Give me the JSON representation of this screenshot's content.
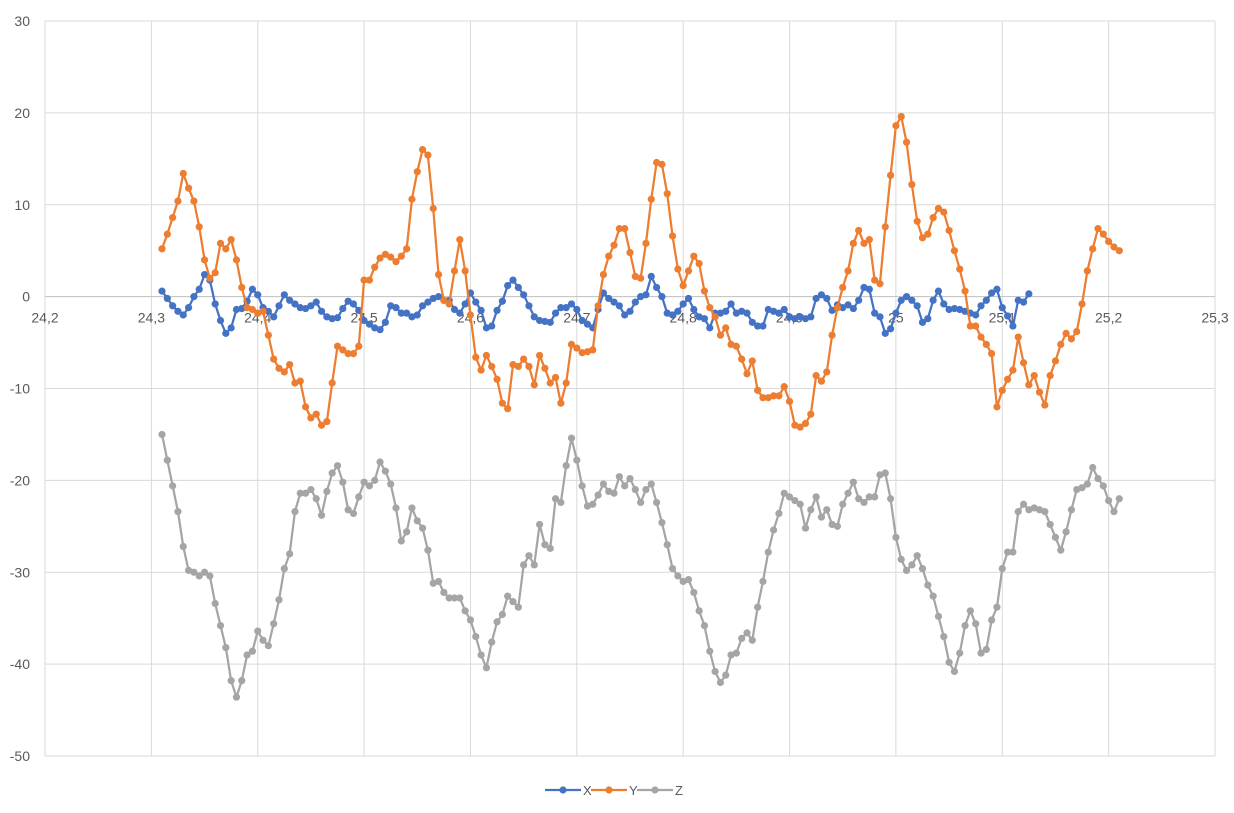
{
  "chart_data": {
    "type": "line",
    "title": "",
    "xlabel": "",
    "ylabel": "",
    "xlim": [
      24.2,
      25.3
    ],
    "ylim": [
      -50,
      30
    ],
    "x_ticks": [
      24.2,
      24.3,
      24.4,
      24.5,
      24.6,
      24.7,
      24.8,
      24.9,
      25.0,
      25.1,
      25.2,
      25.3
    ],
    "x_tick_labels": [
      "24,2",
      "24,3",
      "24,4",
      "24,5",
      "24,6",
      "24,7",
      "24,8",
      "24,9",
      "25",
      "25,1",
      "25,2",
      "25,3"
    ],
    "y_ticks": [
      30,
      20,
      10,
      0,
      -10,
      -20,
      -30,
      -40,
      -50
    ],
    "y_tick_labels": [
      "30",
      "20",
      "10",
      "0",
      "-10",
      "-20",
      "-30",
      "-40",
      "-50"
    ],
    "grid": true,
    "markers": true,
    "legend_position": "bottom",
    "x_start": 24.31,
    "x_step": 0.005,
    "series": [
      {
        "name": "X",
        "color": "#4472C4",
        "values": [
          0.6,
          -0.2,
          -1,
          -1.6,
          -2,
          -1.2,
          0,
          0.8,
          2.4,
          1.8,
          -0.8,
          -2.6,
          -4,
          -3.4,
          -1.4,
          -1.3,
          -0.5,
          0.8,
          0.2,
          -1.2,
          -1.6,
          -2.2,
          -1,
          0.2,
          -0.4,
          -0.8,
          -1.2,
          -1.3,
          -1,
          -0.6,
          -1.6,
          -2.2,
          -2.4,
          -2.3,
          -1.3,
          -0.5,
          -0.8,
          -1.5,
          -2.6,
          -3,
          -3.4,
          -3.6,
          -2.8,
          -1,
          -1.2,
          -1.8,
          -1.8,
          -2.2,
          -2,
          -1,
          -0.6,
          -0.2,
          0,
          -0.4,
          -0.4,
          -1.4,
          -1.8,
          -0.8,
          0.4,
          -0.6,
          -1.5,
          -3.4,
          -3.2,
          -1.5,
          -0.5,
          1.2,
          1.8,
          1,
          0.2,
          -1,
          -2.2,
          -2.6,
          -2.7,
          -2.8,
          -1.8,
          -1.2,
          -1.2,
          -0.8,
          -1.4,
          -2.6,
          -3,
          -3.4,
          -1.4,
          0.4,
          -0.2,
          -0.6,
          -1,
          -2,
          -1.6,
          -0.6,
          0,
          0.2,
          2.2,
          1,
          0,
          -1.8,
          -2,
          -1.6,
          -0.8,
          -0.2,
          -1.4,
          -2.2,
          -2.4,
          -3.4,
          -1.8,
          -1.8,
          -1.6,
          -0.8,
          -1.8,
          -1.6,
          -1.8,
          -2.8,
          -3.2,
          -3.2,
          -1.4,
          -1.6,
          -1.8,
          -1.4,
          -2.2,
          -2.4,
          -2.2,
          -2.4,
          -2.2,
          -0.2,
          0.2,
          -0.2,
          -1.5,
          -0.9,
          -1.2,
          -0.9,
          -1.3,
          -0.4,
          1,
          0.8,
          -1.8,
          -2.2,
          -4,
          -3.5,
          -1.8,
          -0.4,
          0,
          -0.4,
          -1,
          -2.8,
          -2.4,
          -0.4,
          0.6,
          -0.8,
          -1.4,
          -1.3,
          -1.4,
          -1.6,
          -1.8,
          -2,
          -1,
          -0.4,
          0.4,
          0.8,
          -1.2,
          -2.1,
          -3.2,
          -0.4,
          -0.6,
          0.3
        ]
      },
      {
        "name": "Y",
        "color": "#ED7D31",
        "values": [
          5.2,
          6.8,
          8.6,
          10.4,
          13.4,
          11.8,
          10.4,
          7.6,
          4,
          2,
          2.6,
          5.8,
          5.2,
          6.2,
          4,
          1,
          -1.2,
          -1.4,
          -1.8,
          -1.6,
          -4.2,
          -6.8,
          -7.8,
          -8.2,
          -7.4,
          -9.4,
          -9.2,
          -12,
          -13.2,
          -12.8,
          -14,
          -13.6,
          -9.4,
          -5.4,
          -5.8,
          -6.2,
          -6.2,
          -5.4,
          1.8,
          1.8,
          3.2,
          4.2,
          4.6,
          4.3,
          3.8,
          4.4,
          5.2,
          10.6,
          13.6,
          16,
          15.4,
          9.6,
          2.4,
          -0.4,
          -0.8,
          2.8,
          6.2,
          2.8,
          -2,
          -6.6,
          -8,
          -6.4,
          -7.6,
          -9,
          -11.6,
          -12.2,
          -7.4,
          -7.6,
          -6.8,
          -7.6,
          -9.6,
          -6.4,
          -7.8,
          -9.4,
          -8.8,
          -11.6,
          -9.4,
          -5.2,
          -5.6,
          -6.1,
          -6,
          -5.8,
          -1,
          2.4,
          4.4,
          5.6,
          7.4,
          7.4,
          4.8,
          2.2,
          2,
          5.8,
          10.6,
          14.6,
          14.4,
          11.2,
          6.6,
          3,
          1.2,
          2.8,
          4.4,
          3.6,
          0.6,
          -1.2,
          -2.2,
          -4.2,
          -3.4,
          -5.2,
          -5.4,
          -6.8,
          -8.4,
          -7,
          -10.2,
          -11,
          -11,
          -10.8,
          -10.8,
          -9.8,
          -11.4,
          -14,
          -14.2,
          -13.8,
          -12.8,
          -8.6,
          -9.2,
          -8.2,
          -4.2,
          -1.2,
          1,
          2.8,
          5.8,
          7.2,
          5.8,
          6.2,
          1.8,
          1.4,
          7.6,
          13.2,
          18.6,
          19.6,
          16.8,
          12.2,
          8.2,
          6.4,
          6.8,
          8.6,
          9.6,
          9.2,
          7.2,
          5,
          3,
          0.6,
          -3.2,
          -3.2,
          -4.4,
          -5.2,
          -6.2,
          -12,
          -10.2,
          -9,
          -8,
          -4.4,
          -7.2,
          -9.6,
          -8.6,
          -10.4,
          -11.8,
          -8.6,
          -7,
          -5.2,
          -4,
          -4.6,
          -3.8,
          -0.8,
          2.8,
          5.2,
          7.4,
          6.8,
          6,
          5.4,
          5
        ]
      },
      {
        "name": "Z",
        "color": "#A5A5A5",
        "values": [
          -15,
          -17.8,
          -20.6,
          -23.4,
          -27.2,
          -29.8,
          -30,
          -30.4,
          -30,
          -30.4,
          -33.4,
          -35.8,
          -38.2,
          -41.8,
          -43.6,
          -41.8,
          -39,
          -38.6,
          -36.4,
          -37.4,
          -38,
          -35.6,
          -33,
          -29.6,
          -28,
          -23.4,
          -21.4,
          -21.4,
          -21,
          -22,
          -23.8,
          -21.2,
          -19.2,
          -18.4,
          -20.2,
          -23.2,
          -23.6,
          -21.8,
          -20.2,
          -20.6,
          -20,
          -18,
          -19,
          -20.4,
          -23,
          -26.6,
          -25.6,
          -23,
          -24.4,
          -25.2,
          -27.6,
          -31.2,
          -31,
          -32.2,
          -32.8,
          -32.8,
          -32.8,
          -34.2,
          -35.2,
          -37,
          -39,
          -40.4,
          -37.6,
          -35.4,
          -34.6,
          -32.6,
          -33.2,
          -33.8,
          -29.2,
          -28.2,
          -29.2,
          -24.8,
          -27,
          -27.4,
          -22,
          -22.4,
          -18.4,
          -15.4,
          -17.8,
          -20.6,
          -22.8,
          -22.6,
          -21.6,
          -20.4,
          -21.2,
          -21.4,
          -19.6,
          -20.6,
          -19.8,
          -21,
          -22.4,
          -21,
          -20.4,
          -22.4,
          -24.6,
          -27,
          -29.6,
          -30.4,
          -31,
          -30.8,
          -32.2,
          -34.2,
          -35.8,
          -38.6,
          -40.8,
          -42,
          -41.2,
          -39,
          -38.8,
          -37.2,
          -36.6,
          -37.4,
          -33.8,
          -31,
          -27.8,
          -25.4,
          -23.6,
          -21.4,
          -21.8,
          -22.2,
          -22.6,
          -25.2,
          -23.2,
          -21.8,
          -24,
          -23.2,
          -24.8,
          -25,
          -22.6,
          -21.4,
          -20.2,
          -22,
          -22.4,
          -21.8,
          -21.8,
          -19.4,
          -19.2,
          -22,
          -26.2,
          -28.6,
          -29.8,
          -29.2,
          -28.2,
          -29.6,
          -31.4,
          -32.6,
          -34.8,
          -37,
          -39.8,
          -40.8,
          -38.8,
          -35.8,
          -34.2,
          -35.6,
          -38.8,
          -38.4,
          -35.2,
          -33.8,
          -29.6,
          -27.8,
          -27.8,
          -23.4,
          -22.6,
          -23.2,
          -23.0,
          -23.2,
          -23.4,
          -24.8,
          -26.2,
          -27.6,
          -25.6,
          -23.2,
          -21,
          -20.8,
          -20.4,
          -18.6,
          -19.8,
          -20.6,
          -22.2,
          -23.4,
          -22
        ]
      }
    ]
  }
}
